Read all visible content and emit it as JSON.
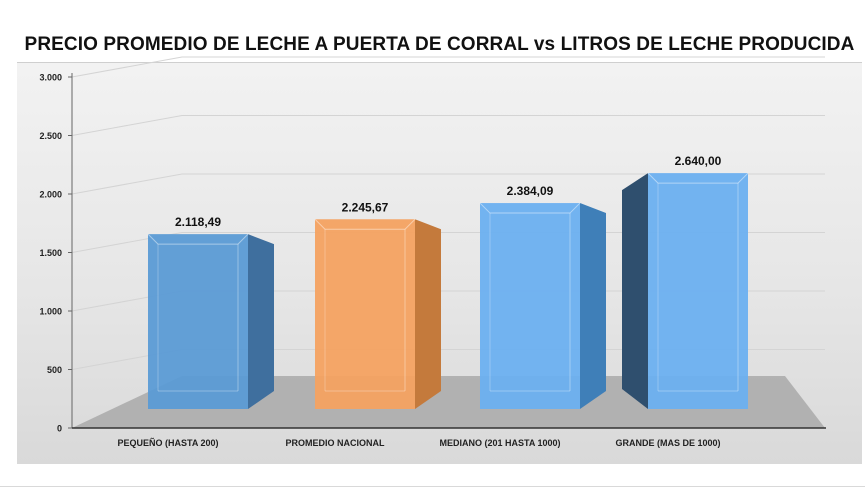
{
  "chart_data": {
    "type": "bar",
    "title": "PRECIO PROMEDIO DE LECHE A PUERTA DE CORRAL vs LITROS DE LECHE PRODUCIDA",
    "categories": [
      "PEQUEÑO (HASTA 200)",
      "PROMEDIO NACIONAL",
      "MEDIANO (201 HASTA 1000)",
      "GRANDE  (MAS DE 1000)"
    ],
    "values": [
      2118.49,
      2245.67,
      2384.09,
      2640.0
    ],
    "value_labels": [
      "2.118,49",
      "2.245,67",
      "2.384,09",
      "2.640,00"
    ],
    "yticks": [
      0,
      500,
      1000,
      1500,
      2000,
      2500,
      3000
    ],
    "ytick_labels": [
      "0",
      "500",
      "1.000",
      "1.500",
      "2.000",
      "2.500",
      "3.000"
    ],
    "ylim": [
      0,
      3000
    ],
    "xlabel": "",
    "ylabel": "",
    "grid": true,
    "style": "3d-bar",
    "colors": [
      "#5b9bd5",
      "#f4a261",
      "#6cb0f0",
      "#6cb0f0"
    ],
    "side_colors": [
      "#3f6f9e",
      "#c47a3c",
      "#3f7fb8",
      "#2f4f6e"
    ]
  }
}
